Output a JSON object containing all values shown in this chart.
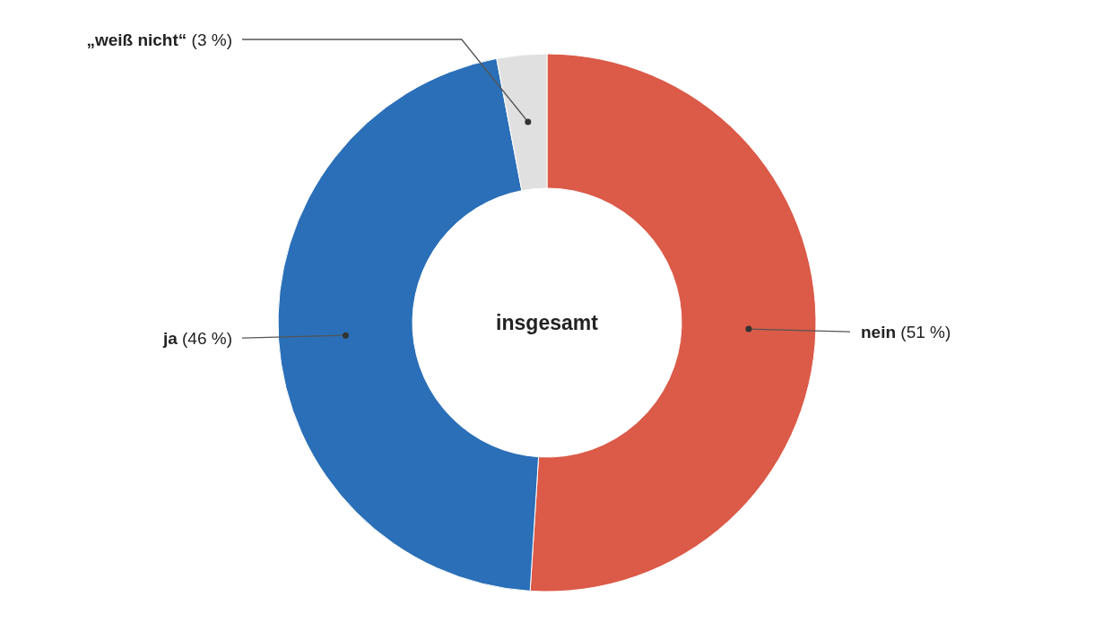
{
  "chart_data": {
    "type": "donut",
    "title": "insgesamt",
    "categories": [
      "nein",
      "ja",
      "„weiß nicht“"
    ],
    "values": [
      51,
      46,
      3
    ],
    "colors": [
      "#db5a48",
      "#2a6fb7",
      "#e0e0e0"
    ],
    "value_labels": [
      "(51 %)",
      "(46 %)",
      "(3 %)"
    ]
  }
}
